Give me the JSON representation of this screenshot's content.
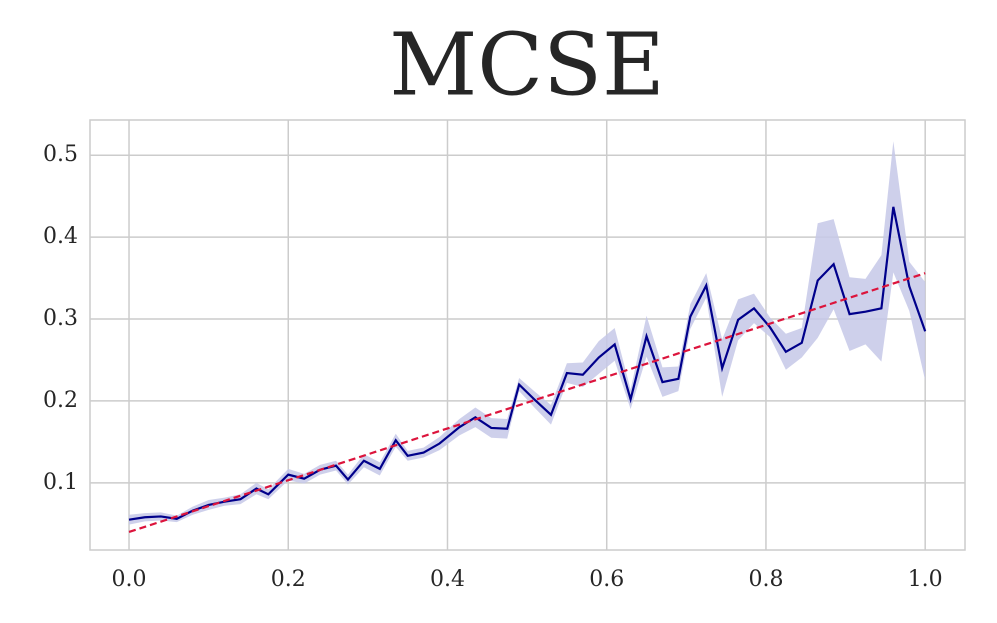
{
  "chart_data": {
    "type": "line",
    "title": "MCSE",
    "x": [
      0.0,
      0.02,
      0.04,
      0.06,
      0.08,
      0.1,
      0.12,
      0.14,
      0.16,
      0.175,
      0.2,
      0.22,
      0.24,
      0.26,
      0.275,
      0.295,
      0.315,
      0.335,
      0.35,
      0.37,
      0.39,
      0.415,
      0.435,
      0.455,
      0.475,
      0.49,
      0.51,
      0.53,
      0.55,
      0.57,
      0.59,
      0.61,
      0.63,
      0.65,
      0.67,
      0.69,
      0.705,
      0.725,
      0.745,
      0.765,
      0.785,
      0.805,
      0.825,
      0.845,
      0.865,
      0.885,
      0.905,
      0.925,
      0.945,
      0.96,
      0.98,
      1.0
    ],
    "series": [
      {
        "color": "#00008b",
        "band_color": "#c5c8e8",
        "values": [
          0.055,
          0.058,
          0.059,
          0.056,
          0.066,
          0.073,
          0.077,
          0.08,
          0.093,
          0.086,
          0.11,
          0.105,
          0.116,
          0.121,
          0.104,
          0.127,
          0.117,
          0.152,
          0.133,
          0.137,
          0.148,
          0.168,
          0.18,
          0.167,
          0.166,
          0.22,
          0.201,
          0.183,
          0.234,
          0.232,
          0.253,
          0.269,
          0.202,
          0.279,
          0.223,
          0.227,
          0.303,
          0.341,
          0.24,
          0.299,
          0.313,
          0.29,
          0.26,
          0.271,
          0.347,
          0.367,
          0.306,
          0.309,
          0.313,
          0.437,
          0.34,
          0.285
        ],
        "lower": [
          0.049,
          0.053,
          0.054,
          0.052,
          0.061,
          0.067,
          0.072,
          0.074,
          0.086,
          0.08,
          0.103,
          0.099,
          0.11,
          0.115,
          0.098,
          0.119,
          0.109,
          0.144,
          0.127,
          0.131,
          0.14,
          0.158,
          0.168,
          0.155,
          0.154,
          0.212,
          0.191,
          0.171,
          0.222,
          0.217,
          0.233,
          0.249,
          0.19,
          0.254,
          0.205,
          0.212,
          0.288,
          0.326,
          0.205,
          0.274,
          0.295,
          0.278,
          0.238,
          0.253,
          0.277,
          0.312,
          0.261,
          0.269,
          0.248,
          0.357,
          0.31,
          0.225
        ],
        "upper": [
          0.061,
          0.063,
          0.064,
          0.06,
          0.071,
          0.079,
          0.082,
          0.086,
          0.1,
          0.092,
          0.117,
          0.111,
          0.122,
          0.127,
          0.11,
          0.135,
          0.125,
          0.16,
          0.139,
          0.143,
          0.156,
          0.178,
          0.192,
          0.179,
          0.178,
          0.228,
          0.211,
          0.195,
          0.246,
          0.247,
          0.273,
          0.289,
          0.214,
          0.304,
          0.241,
          0.242,
          0.318,
          0.356,
          0.275,
          0.324,
          0.331,
          0.302,
          0.282,
          0.289,
          0.417,
          0.422,
          0.351,
          0.349,
          0.378,
          0.517,
          0.37,
          0.345
        ]
      }
    ],
    "fit": {
      "x": [
        0.0,
        1.0
      ],
      "values": [
        0.04,
        0.356
      ],
      "color": "#dc143c",
      "dashed": true
    },
    "xlim": [
      -0.049,
      1.05
    ],
    "ylim": [
      0.018,
      0.543
    ],
    "xticks": [
      {
        "value": 0,
        "label": "0.0"
      },
      {
        "value": 0.2,
        "label": "0.2"
      },
      {
        "value": 0.4,
        "label": "0.4"
      },
      {
        "value": 0.6,
        "label": "0.6"
      },
      {
        "value": 0.8,
        "label": "0.8"
      },
      {
        "value": 1,
        "label": "1.0"
      }
    ],
    "yticks": [
      0.1,
      0.2,
      0.3,
      0.4,
      0.5
    ],
    "grid": true
  }
}
